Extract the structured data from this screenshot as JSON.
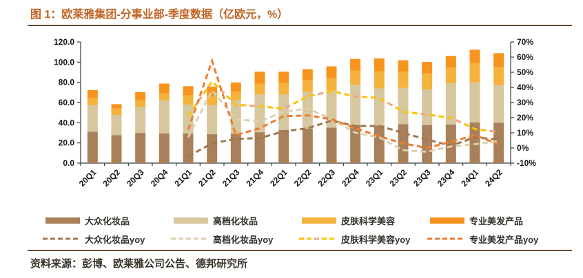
{
  "figure": {
    "title": "图 1：欧莱雅集团-分事业部-季度数据（亿欧元，%）",
    "source": "资料来源：彭博、欧莱雅公司公告、德邦研究所",
    "title_color": "#bf6425",
    "rule_color": "#6a4e2c"
  },
  "chart_data": {
    "type": "bar",
    "subtype": "stacked-bars-with-yoy-lines",
    "grid": false,
    "legend_position": "bottom",
    "categories": [
      "20Q1",
      "20Q2",
      "20Q3",
      "20Q4",
      "21Q1",
      "21Q2",
      "21Q3",
      "21Q4",
      "22Q1",
      "22Q2",
      "22Q3",
      "22Q4",
      "23Q1",
      "23Q2",
      "23Q3",
      "23Q4",
      "24Q1",
      "24Q2"
    ],
    "bar_series": [
      {
        "name": "大众化妆品",
        "color": "#A9805A",
        "values": [
          31.1,
          27.7,
          29.9,
          29.3,
          29.3,
          28.6,
          29.0,
          30.6,
          32.9,
          34.2,
          35.2,
          37.7,
          37.2,
          38.6,
          37.7,
          38.2,
          40.3,
          39.9
        ]
      },
      {
        "name": "高档化妆品",
        "color": "#D6C79F",
        "values": [
          26.2,
          19.9,
          25.6,
          32.7,
          28.7,
          28.7,
          33.1,
          37.4,
          35.0,
          36.2,
          36.6,
          40.0,
          36.8,
          36.0,
          35.2,
          40.8,
          39.7,
          37.4
        ]
      },
      {
        "name": "皮肤科学美容",
        "color": "#F5B23C",
        "values": [
          7.5,
          6.4,
          6.9,
          7.1,
          9.1,
          8.9,
          8.7,
          10.5,
          11.9,
          11.7,
          12.5,
          14.0,
          17.0,
          16.0,
          16.1,
          15.5,
          19.2,
          17.7
        ]
      },
      {
        "name": "专业美发产品",
        "color": "#F7941D",
        "values": [
          7.5,
          4.4,
          7.9,
          9.7,
          9.1,
          9.6,
          9.1,
          12.1,
          10.8,
          11.0,
          11.5,
          11.5,
          12.8,
          11.3,
          11.2,
          11.7,
          13.2,
          13.9
        ]
      }
    ],
    "line_series": [
      {
        "name": "大众化妆品yoy",
        "color": "#A0784C",
        "values": [
          null,
          null,
          null,
          null,
          -5.5,
          3.0,
          6.0,
          6.5,
          11.0,
          13.0,
          18.0,
          14.5,
          14.5,
          10.0,
          5.5,
          1.5,
          7.0,
          5.5
        ]
      },
      {
        "name": "高档化妆品yoy",
        "color": "#DCD0AE",
        "values": [
          null,
          null,
          null,
          null,
          7.0,
          38.0,
          19.0,
          17.5,
          24.0,
          26.0,
          19.0,
          10.0,
          7.0,
          -1.5,
          -2.5,
          1.0,
          2.5,
          4.5
        ]
      },
      {
        "name": "皮肤科学美容yoy",
        "color": "#FFC000",
        "accent_color": "#F4A582",
        "values": [
          null,
          null,
          null,
          null,
          21.0,
          44.0,
          28.5,
          27.5,
          26.0,
          34.0,
          37.5,
          34.0,
          33.0,
          24.0,
          22.0,
          20.0,
          12.5,
          10.5
        ]
      },
      {
        "name": "专业美发产品yoy",
        "color": "#ED7D31",
        "values": [
          null,
          null,
          null,
          null,
          12.0,
          57.5,
          8.5,
          13.0,
          21.0,
          21.5,
          19.0,
          13.0,
          7.7,
          3.0,
          0.0,
          4.0,
          8.5,
          2.3
        ]
      }
    ],
    "left_axis": {
      "min": 0,
      "max": 120,
      "step": 20,
      "labels": [
        "0.0",
        "20.0",
        "40.0",
        "60.0",
        "80.0",
        "100.0",
        "120.0"
      ]
    },
    "right_axis": {
      "min": -10,
      "max": 70,
      "step": 10,
      "labels": [
        "-10%",
        "0%",
        "10%",
        "20%",
        "30%",
        "40%",
        "50%",
        "60%",
        "70%"
      ]
    }
  }
}
